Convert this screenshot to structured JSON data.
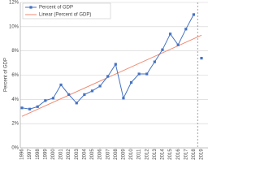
{
  "chart_data": {
    "type": "line",
    "categories": [
      "1996",
      "1997",
      "1998",
      "1999",
      "2000",
      "2001",
      "2002",
      "2003",
      "2004",
      "2005",
      "2006",
      "2007",
      "2008",
      "2009",
      "2010",
      "2011",
      "2012",
      "2013",
      "2014",
      "2015",
      "2016",
      "2017",
      "2018",
      "2019"
    ],
    "series": [
      {
        "name": "Percent of GDP",
        "color": "#4472c4",
        "values": [
          3.3,
          3.2,
          3.4,
          3.9,
          4.1,
          5.2,
          4.4,
          3.7,
          4.4,
          4.7,
          5.1,
          5.9,
          6.9,
          4.1,
          5.4,
          6.1,
          6.1,
          7.1,
          8.1,
          9.4,
          8.5,
          9.8,
          11.0,
          7.4
        ]
      }
    ],
    "trend": {
      "name": "Linear (Percent of GDP)",
      "color": "#f08a70",
      "x": [
        "1996",
        "2019"
      ],
      "values": [
        2.6,
        9.3
      ]
    },
    "divider_after": "2018",
    "y_label": "Percent of GDP",
    "ylim": [
      0,
      12
    ],
    "yticks": [
      {
        "value": 0,
        "label": "0%"
      },
      {
        "value": 2,
        "label": "2%"
      },
      {
        "value": 4,
        "label": "4%"
      },
      {
        "value": 6,
        "label": "6%"
      },
      {
        "value": 8,
        "label": "8%"
      },
      {
        "value": 10,
        "label": "10%"
      },
      {
        "value": 12,
        "label": "12%"
      }
    ],
    "grid": true,
    "legend": "top-left"
  }
}
